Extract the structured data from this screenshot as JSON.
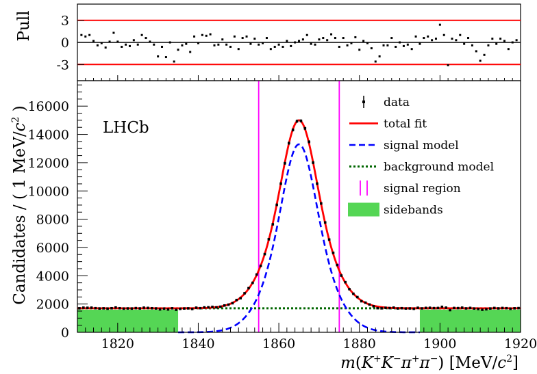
{
  "chart_data": [
    {
      "type": "scatter",
      "panel": "pull",
      "ylabel": "Pull",
      "xlim": [
        1810,
        1920
      ],
      "ylim": [
        -5.2,
        5.2
      ],
      "y_ticks": [
        3,
        0,
        -3
      ],
      "y_tick_labels": [
        "3",
        "0",
        "-3"
      ],
      "reference_lines": [
        3,
        0,
        -3
      ],
      "x": [
        1811,
        1812,
        1813,
        1814,
        1815,
        1816,
        1817,
        1818,
        1819,
        1820,
        1821,
        1822,
        1823,
        1824,
        1825,
        1826,
        1827,
        1828,
        1829,
        1830,
        1831,
        1832,
        1833,
        1834,
        1835,
        1836,
        1837,
        1838,
        1839,
        1840,
        1841,
        1842,
        1843,
        1844,
        1845,
        1846,
        1847,
        1848,
        1849,
        1850,
        1851,
        1852,
        1853,
        1854,
        1855,
        1856,
        1857,
        1858,
        1859,
        1860,
        1861,
        1862,
        1863,
        1864,
        1865,
        1866,
        1867,
        1868,
        1869,
        1870,
        1871,
        1872,
        1873,
        1874,
        1875,
        1876,
        1877,
        1878,
        1879,
        1880,
        1881,
        1882,
        1883,
        1884,
        1885,
        1886,
        1887,
        1888,
        1889,
        1890,
        1891,
        1892,
        1893,
        1894,
        1895,
        1896,
        1897,
        1898,
        1899,
        1900,
        1901,
        1902,
        1903,
        1904,
        1905,
        1906,
        1907,
        1908,
        1909,
        1910,
        1911,
        1912,
        1913,
        1914,
        1915,
        1916,
        1917,
        1918,
        1919
      ],
      "pull": [
        1.0,
        0.8,
        1.0,
        0.2,
        -0.4,
        -0.1,
        -0.7,
        0.1,
        1.3,
        0.1,
        -0.6,
        -0.3,
        -0.5,
        0.3,
        -0.3,
        1.0,
        0.6,
        0.1,
        -0.3,
        -1.9,
        -0.6,
        -2.0,
        0.0,
        -2.6,
        -1.0,
        -0.4,
        -0.2,
        -1.3,
        0.8,
        -0.1,
        1.0,
        0.9,
        1.1,
        -0.4,
        -0.3,
        0.4,
        -0.3,
        -0.6,
        0.8,
        -0.9,
        0.6,
        0.8,
        -0.2,
        0.5,
        -0.3,
        -0.1,
        0.6,
        -0.9,
        -0.6,
        -0.3,
        -0.6,
        0.2,
        -0.5,
        0.0,
        0.2,
        0.4,
        1.0,
        -0.2,
        -0.3,
        0.4,
        0.6,
        0.3,
        1.1,
        0.6,
        -0.6,
        0.6,
        -0.4,
        -0.1,
        0.7,
        -1.0,
        0.2,
        -0.1,
        -0.8,
        -2.6,
        -1.9,
        -0.4,
        -0.4,
        0.6,
        -0.6,
        0.0,
        -0.5,
        -0.3,
        -0.9,
        0.8,
        -0.2,
        0.6,
        0.8,
        0.3,
        0.5,
        2.4,
        1.0,
        -3.1,
        0.5,
        0.3,
        1.0,
        -0.2,
        0.6,
        -0.4,
        -1.2,
        -2.5,
        -1.7,
        -0.4,
        0.5,
        -0.2,
        0.5,
        0.2,
        -0.9,
        0.0,
        0.3
      ]
    },
    {
      "type": "line",
      "panel": "main",
      "xlabel": "m(K⁺K⁻π⁺π⁻) [MeV/c²]",
      "ylabel": "Candidates / ( 1 MeV/c² )",
      "xlim": [
        1810,
        1920
      ],
      "ylim": [
        0,
        17800
      ],
      "x_ticks": [
        1820,
        1840,
        1860,
        1880,
        1900,
        1920
      ],
      "x_tick_labels": [
        "1820",
        "1840",
        "1860",
        "1880",
        "1900",
        "1920"
      ],
      "y_ticks": [
        0,
        2000,
        4000,
        6000,
        8000,
        10000,
        12000,
        14000,
        16000
      ],
      "y_tick_labels": [
        "0",
        "2000",
        "4000",
        "6000",
        "8000",
        "10000",
        "12000",
        "14000",
        "16000"
      ],
      "signal_peak": {
        "mean": 1865,
        "amplitude": 13300,
        "core_sigma": 3.8,
        "core_fraction": 0.45,
        "wide_sigma": 6.8
      },
      "background_level": 1700,
      "signal_region": [
        1855,
        1875
      ],
      "sidebands": [
        [
          1810,
          1835
        ],
        [
          1895,
          1920
        ]
      ],
      "sideband_height": 1600,
      "data_x_range": [
        1810.5,
        1919.5
      ],
      "data_bin_width": 1,
      "legend_position": "top-right",
      "series": [
        {
          "name": "data",
          "style": "black points with error bars"
        },
        {
          "name": "total fit",
          "style": "solid",
          "color": "#ff0000"
        },
        {
          "name": "signal model",
          "style": "dashed",
          "color": "#0000ff"
        },
        {
          "name": "background model",
          "style": "dotted",
          "color": "#006600"
        },
        {
          "name": "signal region",
          "style": "vertical lines",
          "color": "#ff00ff"
        },
        {
          "name": "sidebands",
          "style": "filled",
          "color": "#55d655"
        }
      ]
    }
  ],
  "labels": {
    "experiment": "LHCb",
    "pull_axis_title": "Pull",
    "y_axis_title": "Candidates / ( 1 MeV/c² )",
    "x_axis_title": "m(K⁺K⁻π⁺π⁻) [MeV/c²]"
  },
  "colors": {
    "fit": "#ff0000",
    "signal": "#0000ff",
    "background": "#006600",
    "signal_region": "#ff00ff",
    "sidebands": "#55d655",
    "data": "#000000"
  }
}
